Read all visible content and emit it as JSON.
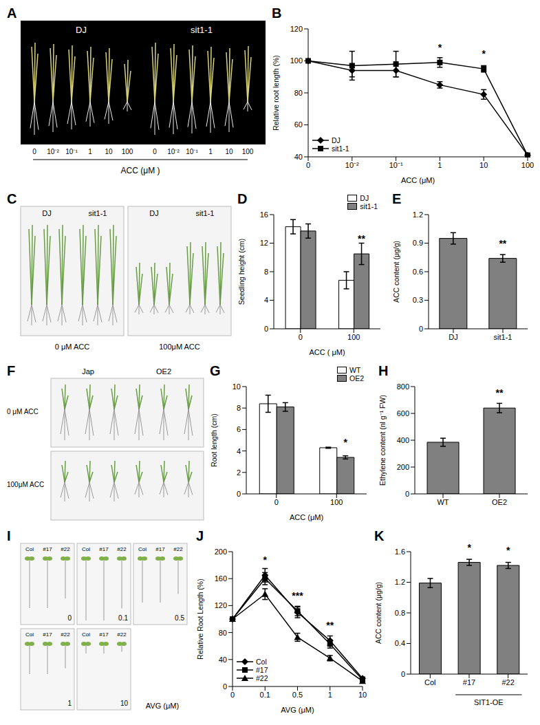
{
  "chart_data": [
    {
      "type": "line",
      "title": "B",
      "xlabel": "ACC (μM)",
      "ylabel": "Relative root length (%)",
      "categories": [
        "0",
        "10⁻²",
        "10⁻¹",
        "1",
        "10",
        "100"
      ],
      "series": [
        {
          "name": "DJ",
          "color": "#000000",
          "marker": "diamond",
          "values": [
            100,
            94,
            94,
            85,
            79,
            41
          ],
          "errors": [
            0,
            4,
            4,
            2,
            3,
            1
          ]
        },
        {
          "name": "sit1-1",
          "color": "#000000",
          "marker": "square",
          "values": [
            100,
            97,
            98,
            99,
            95,
            41
          ],
          "errors": [
            0,
            9,
            8,
            3,
            2,
            1
          ]
        }
      ],
      "ylim": [
        40,
        120
      ],
      "yticks": [
        40,
        60,
        80,
        100,
        120
      ],
      "legend": "lower left",
      "annotations": [
        {
          "x": "1",
          "series": "sit1-1",
          "text": "*"
        },
        {
          "x": "10",
          "series": "sit1-1",
          "text": "*"
        }
      ]
    },
    {
      "type": "bar",
      "title": "D",
      "xlabel": "ACC ( μM)",
      "ylabel": "Seedling height (cm)",
      "categories": [
        "0",
        "100"
      ],
      "series": [
        {
          "name": "DJ",
          "color": "#ffffff",
          "values": [
            14.3,
            6.8
          ],
          "errors": [
            1.0,
            1.2
          ]
        },
        {
          "name": "sit1-1",
          "color": "#808080",
          "values": [
            13.7,
            10.5
          ],
          "errors": [
            1.0,
            1.5
          ]
        }
      ],
      "ylim": [
        0,
        16
      ],
      "yticks": [
        0,
        4,
        8,
        12,
        16
      ],
      "legend": "upper right",
      "annotations": [
        {
          "x": "100",
          "series": "sit1-1",
          "text": "**"
        }
      ]
    },
    {
      "type": "bar",
      "title": "E",
      "ylabel": "ACC content (μg/g)",
      "categories": [
        "DJ",
        "sit1-1"
      ],
      "values": [
        0.95,
        0.74
      ],
      "errors": [
        0.06,
        0.04
      ],
      "color": "#808080",
      "ylim": [
        0,
        1.2
      ],
      "yticks": [
        0,
        0.3,
        0.6,
        0.9,
        1.2
      ],
      "annotations": [
        {
          "x": "sit1-1",
          "text": "**"
        }
      ]
    },
    {
      "type": "bar",
      "title": "G",
      "xlabel": "ACC (μM)",
      "ylabel": "Root length (cm)",
      "categories": [
        "0",
        "100"
      ],
      "series": [
        {
          "name": "WT",
          "color": "#ffffff",
          "values": [
            8.4,
            4.3
          ],
          "errors": [
            0.8,
            0.05
          ]
        },
        {
          "name": "OE2",
          "color": "#808080",
          "values": [
            8.1,
            3.4
          ],
          "errors": [
            0.4,
            0.15
          ]
        }
      ],
      "ylim": [
        0,
        10
      ],
      "yticks": [
        0,
        2,
        4,
        6,
        8,
        10
      ],
      "legend": "upper right",
      "annotations": [
        {
          "x": "100",
          "series": "OE2",
          "text": "*"
        }
      ]
    },
    {
      "type": "bar",
      "title": "H",
      "ylabel": "Ethylene content (nl g⁻¹ FW)",
      "categories": [
        "WT",
        "OE2"
      ],
      "values": [
        385,
        640
      ],
      "errors": [
        30,
        35
      ],
      "color": "#808080",
      "ylim": [
        0,
        800
      ],
      "yticks": [
        0,
        200,
        400,
        600,
        800
      ],
      "annotations": [
        {
          "x": "OE2",
          "text": "**"
        }
      ]
    },
    {
      "type": "line",
      "title": "J",
      "xlabel": "AVG (μM)",
      "ylabel": "Relative Root Length (%)",
      "categories": [
        "0",
        "0.1",
        "0.5",
        "1",
        "10"
      ],
      "series": [
        {
          "name": "Col",
          "color": "#000000",
          "marker": "diamond",
          "values": [
            100,
            165,
            110,
            68,
            12
          ],
          "errors": [
            0,
            10,
            8,
            7,
            2
          ]
        },
        {
          "name": "#17",
          "color": "#000000",
          "marker": "square",
          "values": [
            100,
            160,
            112,
            63,
            10
          ],
          "errors": [
            0,
            9,
            7,
            6,
            2
          ]
        },
        {
          "name": "#22",
          "color": "#000000",
          "marker": "triangle",
          "values": [
            100,
            137,
            73,
            42,
            8
          ],
          "errors": [
            0,
            8,
            6,
            4,
            2
          ]
        }
      ],
      "ylim": [
        0,
        200
      ],
      "yticks": [
        0,
        40,
        80,
        120,
        160,
        200
      ],
      "legend": "lower left",
      "annotations": [
        {
          "x": "0.1",
          "series": "Col",
          "text": "*"
        },
        {
          "x": "0.5",
          "series": "#17",
          "text": "***"
        },
        {
          "x": "1",
          "series": "Col",
          "text": "**"
        }
      ]
    },
    {
      "type": "bar",
      "title": "K",
      "ylabel": "ACC content (μg/g)",
      "categories": [
        "Col",
        "#17",
        "#22"
      ],
      "values": [
        1.19,
        1.46,
        1.42
      ],
      "errors": [
        0.06,
        0.04,
        0.04
      ],
      "color": "#808080",
      "ylim": [
        0,
        1.6
      ],
      "yticks": [
        0,
        0.4,
        0.8,
        1.2,
        1.6
      ],
      "group_label": {
        "text": "SIT1-OE",
        "categories": [
          "#17",
          "#22"
        ]
      },
      "annotations": [
        {
          "x": "#17",
          "text": "*"
        },
        {
          "x": "#22",
          "text": "*"
        }
      ]
    }
  ],
  "photo_panels": [
    {
      "title": "A",
      "groups": [
        "DJ",
        "sit1-1"
      ],
      "doses": [
        "0",
        "10⁻²",
        "10⁻¹",
        "1",
        "10",
        "100"
      ],
      "caption": "ACC (μM )"
    },
    {
      "title": "C",
      "groups": [
        "DJ",
        "sit1-1"
      ],
      "conditions": [
        "0 μM ACC",
        "100μM ACC"
      ]
    },
    {
      "title": "F",
      "groups": [
        "Jap",
        "OE2"
      ],
      "conditions": [
        "0 μM ACC",
        "100μM ACC"
      ]
    },
    {
      "title": "I",
      "lines": [
        "Col",
        "#17",
        "#22"
      ],
      "doses": [
        "0",
        "0.1",
        "0.5",
        "1",
        "10"
      ],
      "caption": "AVG (μM)"
    }
  ]
}
